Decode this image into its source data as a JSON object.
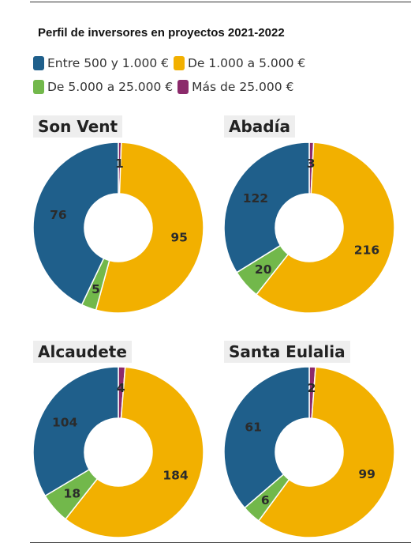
{
  "title": "Perfil de inversores en proyectos 2021-2022",
  "legend": [
    {
      "label": "Entre 500 y 1.000 €",
      "color": "#1f5f8b"
    },
    {
      "label": "De 1.000 a 5.000 €",
      "color": "#f2b000"
    },
    {
      "label": "De 5.000 a 25.000 €",
      "color": "#72b84b"
    },
    {
      "label": "Más de 25.000 €",
      "color": "#8b2a6b"
    }
  ],
  "chart_data": [
    {
      "type": "pie",
      "title": "Son Vent",
      "categories": [
        "Entre 500 y 1.000 €",
        "De 1.000 a 5.000 €",
        "De 5.000 a 25.000 €",
        "Más de 25.000 €"
      ],
      "values": [
        76,
        95,
        5,
        1
      ]
    },
    {
      "type": "pie",
      "title": "Abadía",
      "categories": [
        "Entre 500 y 1.000 €",
        "De 1.000 a 5.000 €",
        "De 5.000 a 25.000 €",
        "Más de 25.000 €"
      ],
      "values": [
        122,
        216,
        20,
        3
      ]
    },
    {
      "type": "pie",
      "title": "Alcaudete",
      "categories": [
        "Entre 500 y 1.000 €",
        "De 1.000 a 5.000 €",
        "De 5.000 a 25.000 €",
        "Más de 25.000 €"
      ],
      "values": [
        104,
        184,
        18,
        4
      ]
    },
    {
      "type": "pie",
      "title": "Santa Eulalia",
      "categories": [
        "Entre 500 y 1.000 €",
        "De 1.000 a 5.000 €",
        "De 5.000 a 25.000 €",
        "Más de 25.000 €"
      ],
      "values": [
        61,
        99,
        6,
        2
      ]
    }
  ]
}
